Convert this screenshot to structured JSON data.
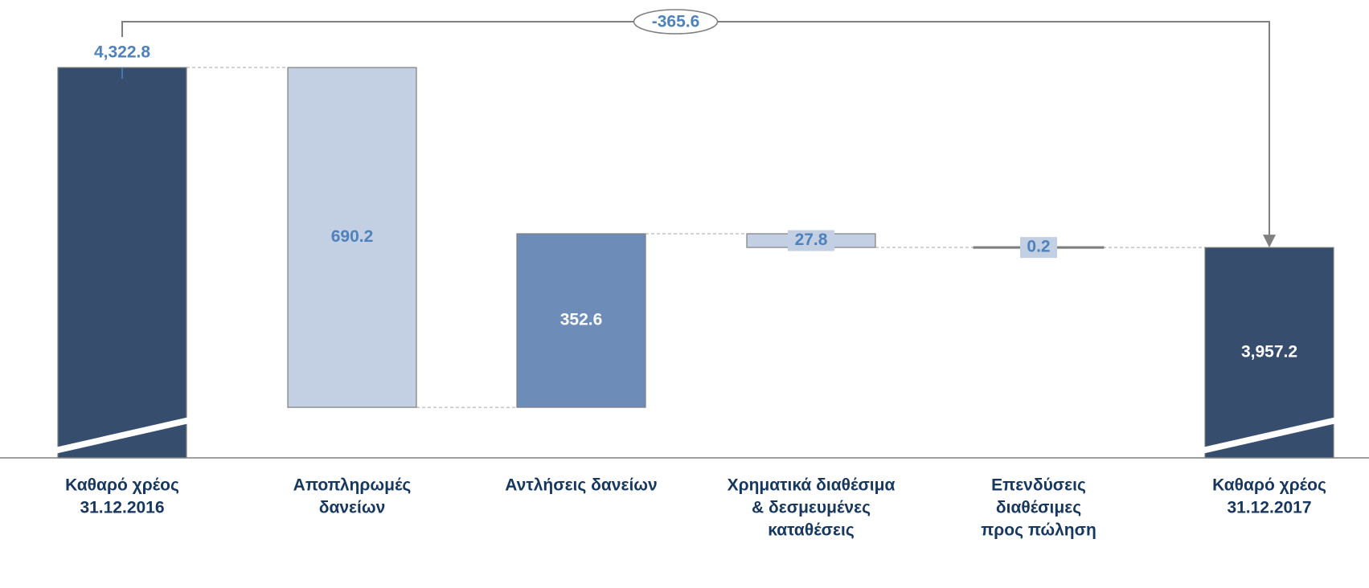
{
  "chart_data": {
    "type": "waterfall",
    "categories": [
      [
        "Καθαρό χρέος",
        "31.12.2016"
      ],
      [
        "Αποπληρωμές",
        "δανείων"
      ],
      [
        "Αντλήσεις δανείων"
      ],
      [
        "Χρηματικά διαθέσιμα",
        "& δεσμευμένες",
        "καταθέσεις"
      ],
      [
        "Επενδύσεις",
        "διαθέσιμες",
        "προς πώληση"
      ],
      [
        "Καθαρό χρέος",
        "31.12.2017"
      ]
    ],
    "values": [
      4322.8,
      -690.2,
      352.6,
      -27.8,
      -0.2,
      3957.2
    ],
    "value_labels": [
      "4,322.8",
      "690.2",
      "352.6",
      "27.8",
      "0.2",
      "3,957.2"
    ],
    "colors": [
      "#364d6e",
      "#c3cfe2",
      "#6d8cb8",
      "#c3cfe2",
      "#c3cfe2",
      "#364d6e"
    ],
    "annotation": "-365.6",
    "ylim": [
      3530,
      4380
    ]
  }
}
